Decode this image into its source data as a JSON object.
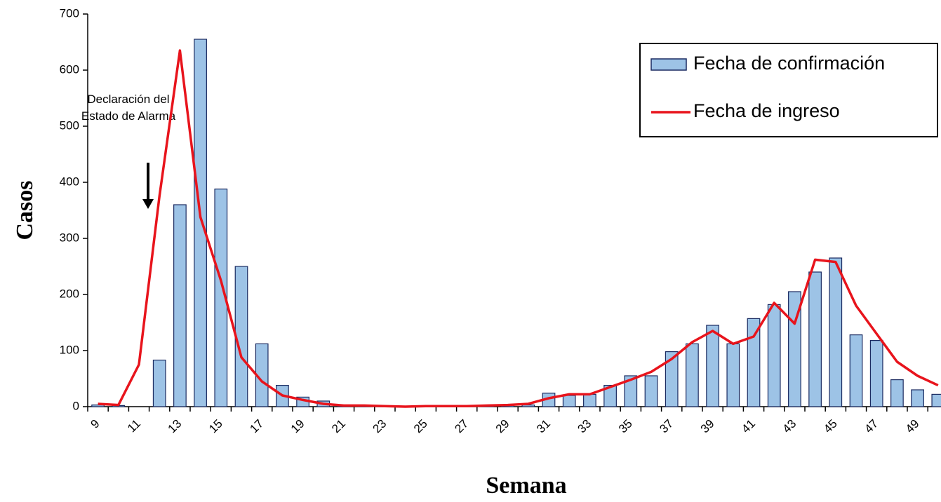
{
  "chart_data": {
    "type": "bar+line",
    "x_label": "Semana",
    "y_label": "Casos",
    "annotation": "Declaración del Estado de Alarma",
    "categories": [
      "9",
      null,
      "11",
      null,
      "13",
      null,
      "15",
      null,
      "17",
      null,
      "19",
      null,
      "21",
      null,
      "23",
      null,
      "25",
      null,
      "27",
      null,
      "29",
      null,
      "31",
      null,
      "33",
      null,
      "35",
      null,
      "37",
      null,
      "39",
      null,
      "41",
      null,
      "43",
      null,
      "45",
      null,
      "47",
      null,
      "49",
      null
    ],
    "series": [
      {
        "name": "Fecha de confirmación",
        "type": "bar",
        "color": "#9dc3e6",
        "values": [
          3,
          2,
          0,
          83,
          360,
          655,
          388,
          250,
          112,
          38,
          17,
          10,
          2,
          1,
          1,
          0,
          1,
          1,
          1,
          1,
          3,
          3,
          24,
          20,
          22,
          38,
          55,
          55,
          98,
          112,
          145,
          112,
          157,
          182,
          205,
          240,
          265,
          128,
          118,
          48,
          30,
          22
        ]
      },
      {
        "name": "Fecha de ingreso",
        "type": "line",
        "color": "#e8141c",
        "values": [
          5,
          3,
          75,
          375,
          635,
          338,
          225,
          88,
          45,
          20,
          12,
          5,
          2,
          2,
          1,
          0,
          1,
          1,
          1,
          2,
          3,
          5,
          15,
          22,
          22,
          35,
          48,
          62,
          85,
          115,
          135,
          112,
          125,
          185,
          148,
          262,
          258,
          180,
          130,
          80,
          55,
          38
        ]
      }
    ],
    "ylim": [
      0,
      700
    ],
    "yticks": [
      0,
      100,
      200,
      300,
      400,
      500,
      600,
      700
    ],
    "legend": "upper right",
    "grid": false
  }
}
